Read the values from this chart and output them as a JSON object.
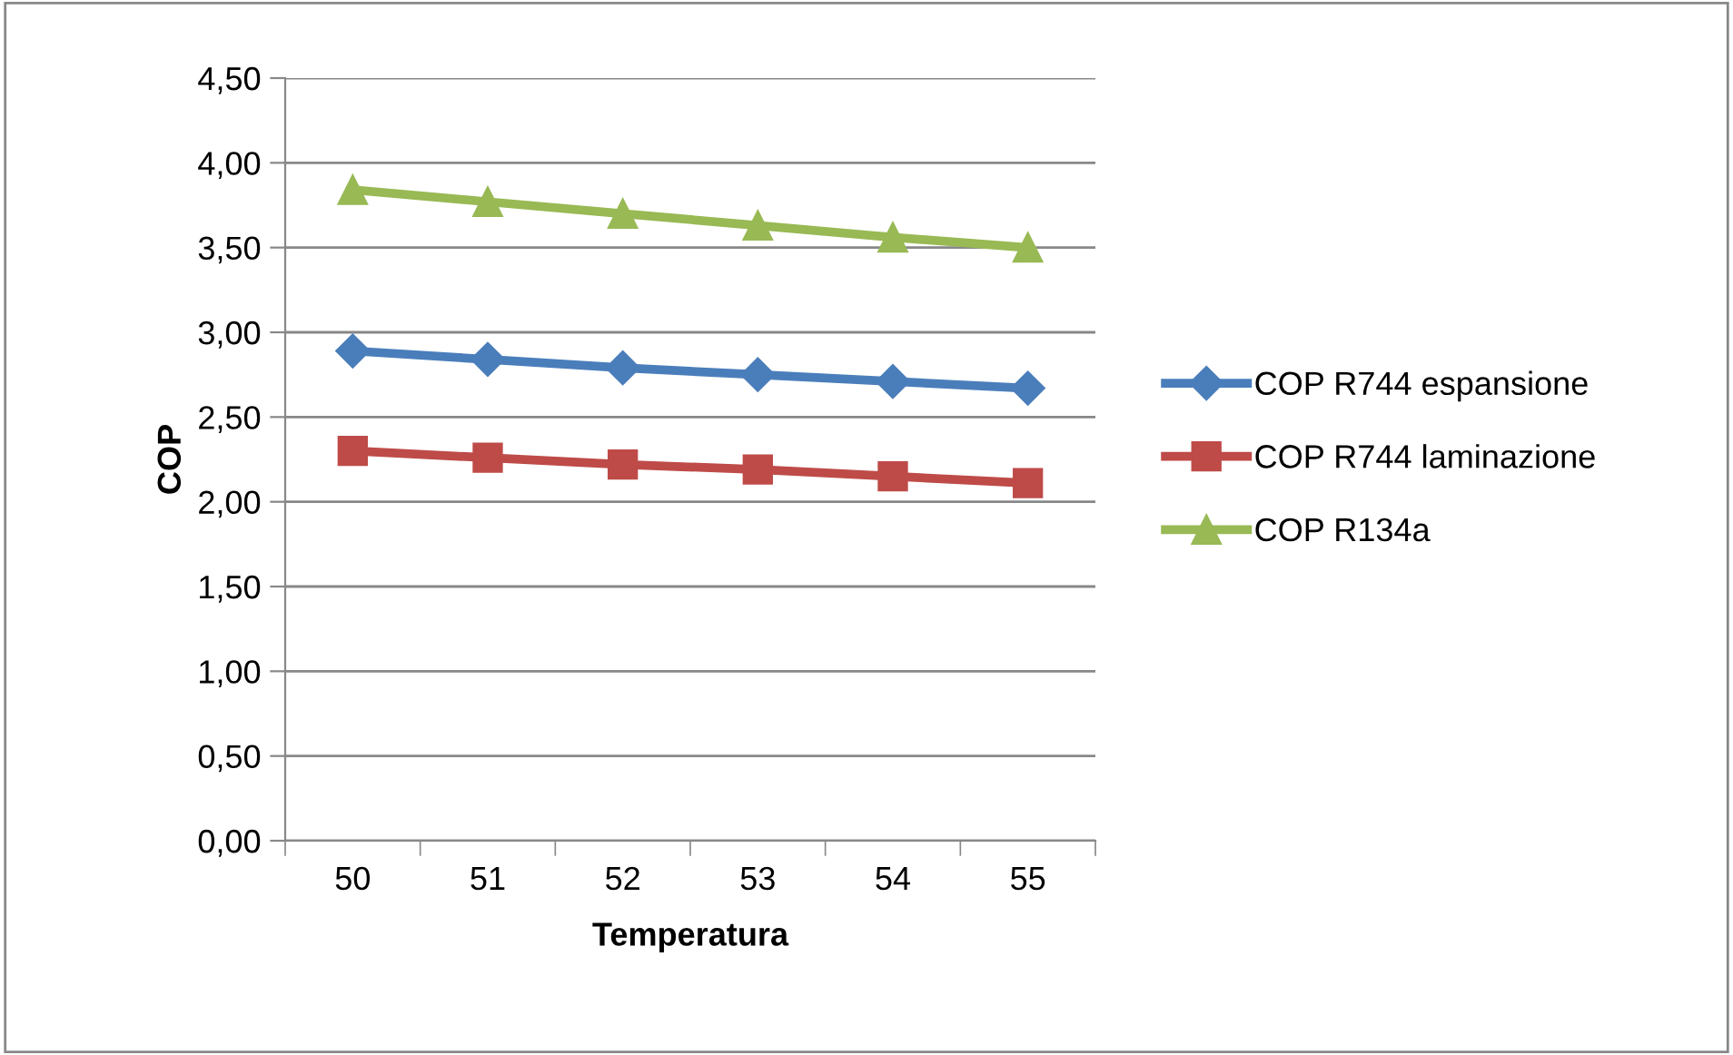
{
  "chart_data": {
    "type": "line",
    "xlabel": "Temperatura",
    "ylabel": "COP",
    "categories": [
      "50",
      "51",
      "52",
      "53",
      "54",
      "55"
    ],
    "series": [
      {
        "name": "COP R744 espansione",
        "color": "#4a7ebb",
        "marker": "diamond",
        "values": [
          2.89,
          2.84,
          2.79,
          2.75,
          2.71,
          2.67
        ]
      },
      {
        "name": "COP R744 laminazione",
        "color": "#be4b48",
        "marker": "square",
        "values": [
          2.3,
          2.26,
          2.22,
          2.19,
          2.15,
          2.11
        ]
      },
      {
        "name": "COP R134a",
        "color": "#98b954",
        "marker": "triangle",
        "values": [
          3.84,
          3.77,
          3.7,
          3.63,
          3.56,
          3.5
        ]
      }
    ],
    "ylim": [
      0,
      4.5
    ],
    "yticks": [
      {
        "value": 0,
        "label": "0,00"
      },
      {
        "value": 0.5,
        "label": "0,50"
      },
      {
        "value": 1,
        "label": "1,00"
      },
      {
        "value": 1.5,
        "label": "1,50"
      },
      {
        "value": 2,
        "label": "2,00"
      },
      {
        "value": 2.5,
        "label": "2,50"
      },
      {
        "value": 3,
        "label": "3,00"
      },
      {
        "value": 3.5,
        "label": "3,50"
      },
      {
        "value": 4,
        "label": "4,00"
      },
      {
        "value": 4.5,
        "label": "4,50"
      }
    ],
    "grid": "y",
    "legend": "right",
    "line_style": "solid"
  }
}
